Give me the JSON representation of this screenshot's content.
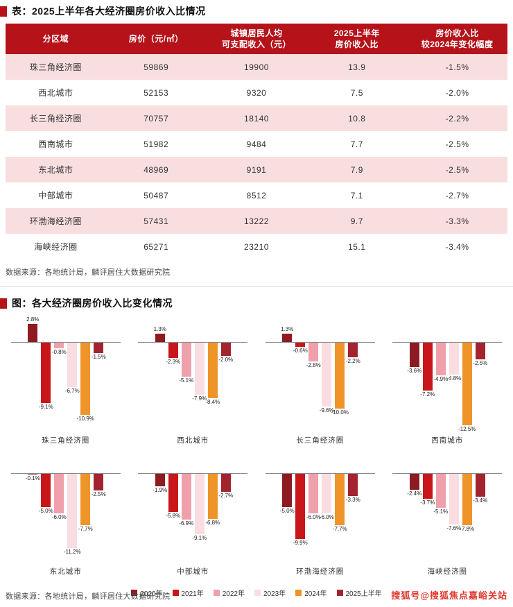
{
  "table_section": {
    "title": "表：2025上半年各大经济圈房价收入比情况",
    "source": "数据来源：各地统计局，麟评居住大数据研究院"
  },
  "table": {
    "headers": [
      [
        "分区域"
      ],
      [
        "房价（元/㎡）"
      ],
      [
        "城镇居民人均",
        "可支配收入（元）"
      ],
      [
        "2025上半年",
        "房价收入比"
      ],
      [
        "房价收入比",
        "较2024年变化幅度"
      ]
    ],
    "rows": [
      [
        "珠三角经济圈",
        "59869",
        "19900",
        "13.9",
        "-1.5%"
      ],
      [
        "西北城市",
        "52153",
        "9320",
        "7.5",
        "-2.0%"
      ],
      [
        "长三角经济圈",
        "70757",
        "18140",
        "10.8",
        "-2.2%"
      ],
      [
        "西南城市",
        "51982",
        "9484",
        "7.7",
        "-2.5%"
      ],
      [
        "东北城市",
        "48969",
        "9191",
        "7.9",
        "-2.5%"
      ],
      [
        "中部城市",
        "50487",
        "8512",
        "7.1",
        "-2.7%"
      ],
      [
        "环渤海经济圈",
        "57431",
        "13222",
        "9.7",
        "-3.3%"
      ],
      [
        "海峡经济圈",
        "65271",
        "23210",
        "15.1",
        "-3.4%"
      ]
    ]
  },
  "chart_section": {
    "title": "图：各大经济圈房价收入比变化情况",
    "source": "数据来源：各地统计局，麟评居住大数据研究院"
  },
  "chart_data": {
    "type": "bar",
    "title": "各大经济圈房价收入比变化情况",
    "unit": "%",
    "grid": false,
    "legend_position": "bottom",
    "ylim": [
      -13,
      3
    ],
    "categories": [
      "2020年",
      "2021年",
      "2022年",
      "2023年",
      "2024年",
      "2025上半年"
    ],
    "series_colors": [
      "#8e1b21",
      "#c9161a",
      "#efa0ab",
      "#fadde0",
      "#ef9428",
      "#a3242f"
    ],
    "charts": [
      {
        "region": "珠三角经济圈",
        "values": [
          2.8,
          -9.1,
          -0.8,
          -6.7,
          -10.9,
          -1.5
        ]
      },
      {
        "region": "西北城市",
        "values": [
          1.3,
          -2.3,
          -5.1,
          -7.9,
          -8.4,
          -2.0
        ]
      },
      {
        "region": "长三角经济圈",
        "values": [
          1.3,
          -0.6,
          -2.8,
          -9.6,
          -10.0,
          -2.2
        ]
      },
      {
        "region": "西南城市",
        "values": [
          -3.6,
          -7.2,
          -4.9,
          -4.8,
          -12.5,
          -2.5
        ]
      },
      {
        "region": "东北城市",
        "values": [
          -0.1,
          -5.0,
          -6.0,
          -11.2,
          -7.7,
          -2.5
        ]
      },
      {
        "region": "中部城市",
        "values": [
          -1.9,
          -5.8,
          -6.9,
          -9.1,
          -6.8,
          -2.7
        ]
      },
      {
        "region": "环渤海经济圈",
        "values": [
          -5.0,
          -9.9,
          -6.0,
          -6.0,
          -7.7,
          -3.3
        ]
      },
      {
        "region": "海峡经济圈",
        "values": [
          -2.4,
          -3.7,
          -5.1,
          -7.6,
          -7.8,
          -3.4
        ]
      }
    ]
  },
  "watermark": "搜狐号@搜狐焦点嘉峪关站",
  "colors": {
    "header_bg": "#b5121a",
    "row_alt_bg": "#f9dee0",
    "accent_red": "#b5121a",
    "watermark_red": "#e03a2f"
  }
}
